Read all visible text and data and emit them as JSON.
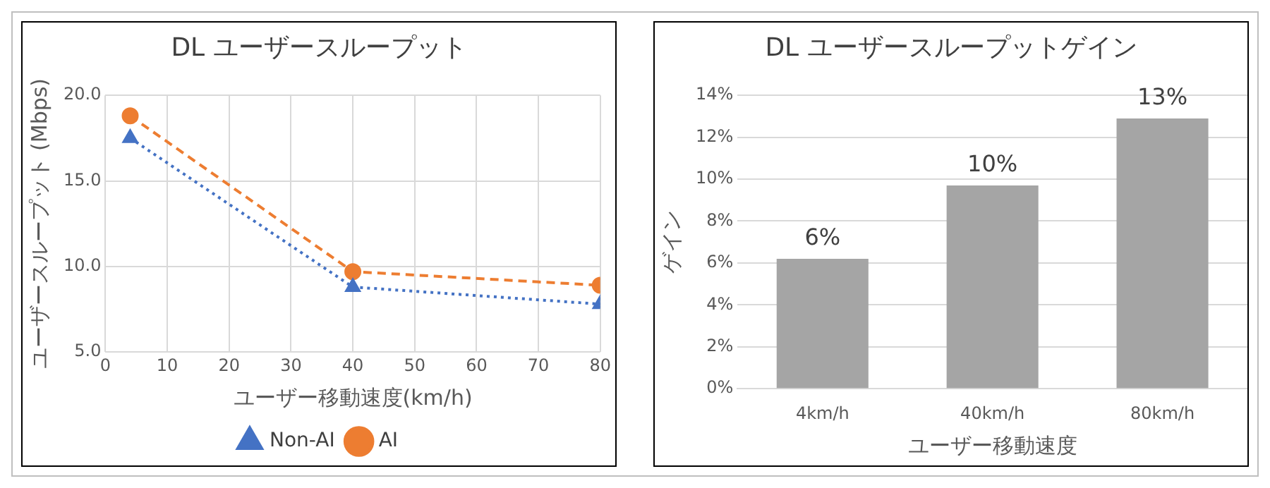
{
  "chart_data": [
    {
      "type": "line",
      "title": "DL ユーザースループット",
      "xlabel": "ユーザー移動速度(km/h)",
      "ylabel": "ユーザースループット (Mbps)",
      "x": [
        4,
        40,
        80
      ],
      "series": [
        {
          "name": "Non-AI",
          "color": "#4472c4",
          "values": [
            17.5,
            8.8,
            7.8
          ],
          "marker": "triangle",
          "line_style": "dotted"
        },
        {
          "name": "AI",
          "color": "#ed7d31",
          "values": [
            18.8,
            9.7,
            8.9
          ],
          "marker": "circle",
          "line_style": "dashed"
        }
      ],
      "xlim": [
        0,
        80
      ],
      "xticks": [
        0,
        10,
        20,
        30,
        40,
        50,
        60,
        70,
        80
      ],
      "ylim": [
        5,
        20
      ],
      "yticks": [
        {
          "value": 5,
          "label": "5.0"
        },
        {
          "value": 10,
          "label": "10.0"
        },
        {
          "value": 15,
          "label": "15.0"
        },
        {
          "value": 20,
          "label": "20.0"
        }
      ],
      "grid": true,
      "legend": "bottom"
    },
    {
      "type": "bar",
      "title": "DL ユーザースループットゲイン",
      "xlabel": "ユーザー移動速度",
      "ylabel": "ゲイン",
      "categories": [
        "4km/h",
        "40km/h",
        "80km/h"
      ],
      "values": [
        6.2,
        9.7,
        12.9
      ],
      "value_labels": [
        "6%",
        "10%",
        "13%"
      ],
      "color": "#a5a5a5",
      "ylim": [
        0,
        14
      ],
      "yticks": [
        {
          "value": 0,
          "label": "0%"
        },
        {
          "value": 2,
          "label": "2%"
        },
        {
          "value": 4,
          "label": "4%"
        },
        {
          "value": 6,
          "label": "6%"
        },
        {
          "value": 8,
          "label": "8%"
        },
        {
          "value": 10,
          "label": "10%"
        },
        {
          "value": 12,
          "label": "12%"
        },
        {
          "value": 14,
          "label": "14%"
        }
      ],
      "grid": "y"
    }
  ]
}
